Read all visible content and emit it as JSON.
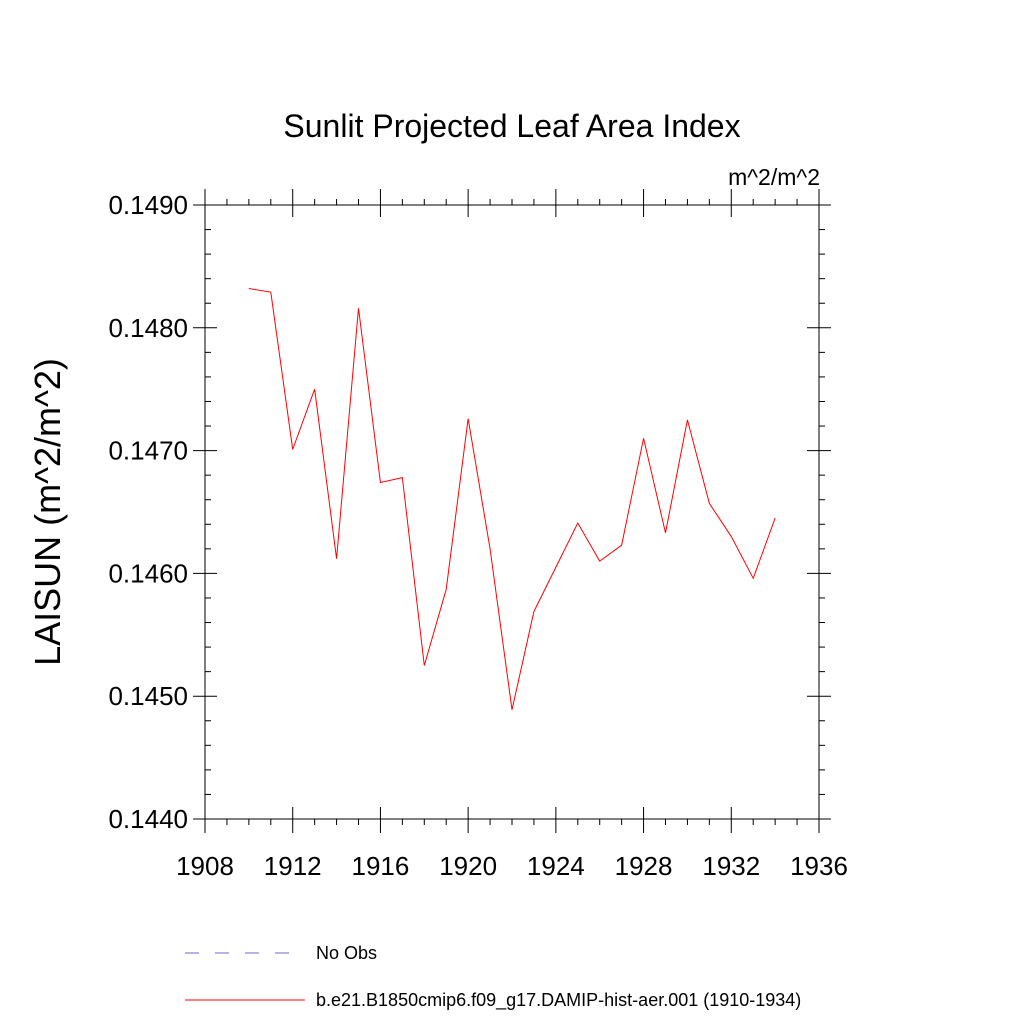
{
  "chart_data": {
    "type": "line",
    "title": "Sunlit Projected Leaf Area Index",
    "units_label": "m^2/m^2",
    "ylabel": "LAISUN  (m^2/m^2)",
    "xlabel": "",
    "xlim": [
      1908,
      1936
    ],
    "ylim": [
      0.144,
      0.149
    ],
    "x_ticks": [
      1908,
      1912,
      1916,
      1920,
      1924,
      1928,
      1932,
      1936
    ],
    "x_tick_labels": [
      "1908",
      "1912",
      "1916",
      "1920",
      "1924",
      "1928",
      "1932",
      "1936"
    ],
    "y_ticks": [
      0.144,
      0.145,
      0.146,
      0.147,
      0.148,
      0.149
    ],
    "y_tick_labels": [
      "0.1440",
      "0.1450",
      "0.1460",
      "0.1470",
      "0.1480",
      "0.1490"
    ],
    "grid": false,
    "legend_position": "bottom",
    "series": [
      {
        "name": "No Obs",
        "color": "#6a6acd",
        "dash": "dashed",
        "x": [],
        "values": []
      },
      {
        "name": "b.e21.B1850cmip6.f09_g17.DAMIP-hist-aer.001 (1910-1934)",
        "color": "#ff0000",
        "dash": "solid",
        "x": [
          1910,
          1911,
          1912,
          1913,
          1914,
          1915,
          1916,
          1917,
          1918,
          1919,
          1920,
          1921,
          1922,
          1923,
          1924,
          1925,
          1926,
          1927,
          1928,
          1929,
          1930,
          1931,
          1932,
          1933,
          1934
        ],
        "values": [
          0.14832,
          0.14829,
          0.14701,
          0.1475,
          0.14612,
          0.14816,
          0.14674,
          0.14678,
          0.14525,
          0.14587,
          0.14726,
          0.1462,
          0.14489,
          0.14569,
          0.14605,
          0.14641,
          0.1461,
          0.14623,
          0.1471,
          0.14633,
          0.14725,
          0.14657,
          0.1463,
          0.14596,
          0.14645
        ]
      }
    ]
  }
}
